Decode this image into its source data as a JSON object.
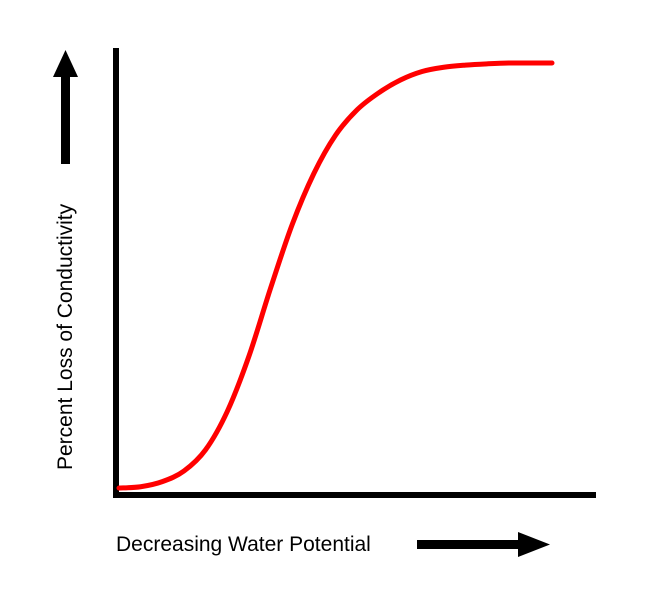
{
  "chart_data": {
    "type": "line",
    "title": "",
    "xlabel": "Decreasing Water Potential",
    "ylabel": "Percent Loss of Conductivity",
    "xlim": [
      0,
      100
    ],
    "ylim": [
      0,
      100
    ],
    "grid": false,
    "legend": "none",
    "tick_labels": false,
    "series": [
      {
        "values_x": [
          0,
          5,
          10,
          15,
          20,
          25,
          30,
          35,
          40,
          45,
          50,
          55,
          60,
          65,
          70,
          75,
          80,
          85,
          90,
          95,
          100
        ],
        "values_y": [
          0,
          0.3,
          1.5,
          4,
          9,
          18,
          31,
          47,
          62,
          74,
          83,
          89,
          93,
          96,
          98,
          99,
          99.5,
          99.8,
          100,
          100,
          100
        ],
        "color": "#ff0000"
      }
    ],
    "axis_color": "#000000"
  }
}
